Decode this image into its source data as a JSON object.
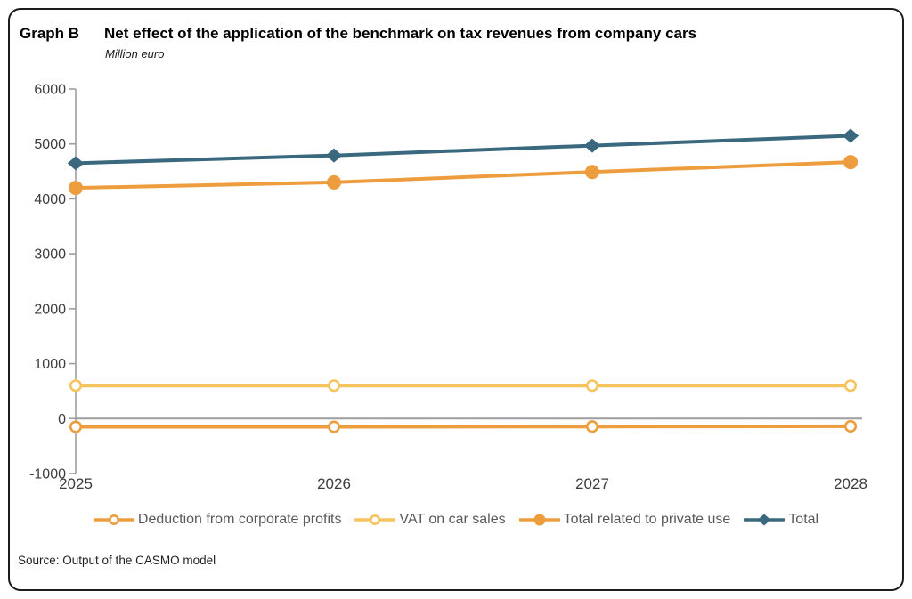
{
  "header": {
    "label": "Graph B"
  },
  "footer": {
    "source": "Source: Output of the CASMO model"
  },
  "chart_data": {
    "type": "line",
    "title": "Net effect of the application of the benchmark on tax revenues from company cars",
    "subtitle": "Million euro",
    "xlabel": "",
    "ylabel": "",
    "categories": [
      "2025",
      "2026",
      "2027",
      "2028"
    ],
    "series": [
      {
        "name": "Deduction from corporate profits",
        "color": "#EE9D3E",
        "marker": "open-circle",
        "values": [
          -150,
          -150,
          -145,
          -140
        ]
      },
      {
        "name": "VAT on car sales",
        "color": "#F6C45F",
        "marker": "open-circle",
        "values": [
          600,
          600,
          600,
          600
        ]
      },
      {
        "name": "Total related to private use",
        "color": "#EE9D3E",
        "marker": "filled-circle",
        "values": [
          4200,
          4300,
          4490,
          4670
        ]
      },
      {
        "name": "Total",
        "color": "#3A687F",
        "marker": "filled-diamond",
        "values": [
          4650,
          4790,
          4970,
          5150
        ]
      }
    ],
    "ylim": [
      -1000,
      6000
    ],
    "ytick_step": 1000,
    "grid": "zero-baseline-only",
    "legend_position": "bottom",
    "axis_color": "#9E9E9E"
  }
}
